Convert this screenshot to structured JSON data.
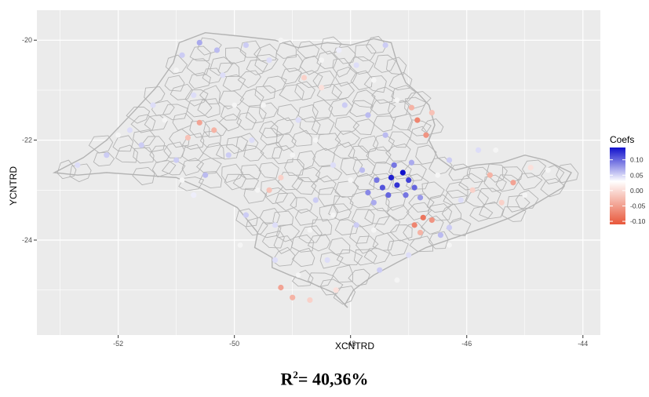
{
  "chart_data": {
    "type": "scatter",
    "title": "",
    "xlabel": "XCNTRD",
    "ylabel": "YCNTRD",
    "xlim": [
      -53.4,
      -43.7
    ],
    "ylim": [
      -25.9,
      -19.4
    ],
    "x_ticks": [
      -52,
      -50,
      -48,
      -46,
      -44
    ],
    "y_ticks": [
      -20,
      -22,
      -24
    ],
    "x_tick_labels": [
      "-52",
      "-50",
      "-48",
      "-46",
      "-44"
    ],
    "y_tick_labels": [
      "-20",
      "-22",
      "-24"
    ],
    "grid": true,
    "panel_background": "#ebebeb",
    "map_fill": "#ebebeb",
    "border_color": "#b3b3b3",
    "legend": {
      "title": "Coefs",
      "position": "right",
      "breaks": [
        0.1,
        0.05,
        0.0,
        -0.05,
        -0.1
      ],
      "labels": [
        "0.10",
        "0.05",
        "0.00",
        "-0.05",
        "-0.10"
      ],
      "limits": [
        -0.11,
        0.14
      ],
      "color_high": "#1010cc",
      "color_mid": "#ffffff",
      "color_low": "#e8573a"
    },
    "points": [
      [
        -47.3,
        -22.75,
        0.13
      ],
      [
        -47.1,
        -22.65,
        0.14
      ],
      [
        -47.2,
        -22.9,
        0.12
      ],
      [
        -47.0,
        -22.8,
        0.11
      ],
      [
        -47.45,
        -22.95,
        0.1
      ],
      [
        -46.9,
        -22.95,
        0.09
      ],
      [
        -47.35,
        -23.1,
        0.09
      ],
      [
        -47.55,
        -22.8,
        0.08
      ],
      [
        -47.05,
        -23.1,
        0.08
      ],
      [
        -47.7,
        -23.05,
        0.07
      ],
      [
        -46.8,
        -23.15,
        0.06
      ],
      [
        -47.25,
        -22.5,
        0.08
      ],
      [
        -47.6,
        -23.25,
        0.05
      ],
      [
        -46.95,
        -22.45,
        0.05
      ],
      [
        -47.8,
        -22.6,
        0.04
      ],
      [
        -46.75,
        -23.55,
        -0.09
      ],
      [
        -46.9,
        -23.7,
        -0.08
      ],
      [
        -46.6,
        -23.6,
        -0.07
      ],
      [
        -46.8,
        -23.85,
        -0.05
      ],
      [
        -46.45,
        -23.9,
        0.04
      ],
      [
        -46.3,
        -23.75,
        0.03
      ],
      [
        -46.85,
        -21.6,
        -0.08
      ],
      [
        -46.7,
        -21.9,
        -0.07
      ],
      [
        -46.95,
        -21.35,
        -0.05
      ],
      [
        -46.6,
        -21.45,
        -0.04
      ],
      [
        -45.6,
        -22.7,
        -0.05
      ],
      [
        -45.2,
        -22.85,
        -0.06
      ],
      [
        -45.9,
        -23.0,
        -0.03
      ],
      [
        -45.4,
        -23.25,
        -0.03
      ],
      [
        -44.9,
        -22.55,
        -0.02
      ],
      [
        -50.6,
        -21.65,
        -0.06
      ],
      [
        -50.35,
        -21.8,
        -0.05
      ],
      [
        -50.8,
        -21.95,
        -0.04
      ],
      [
        -49.4,
        -23.0,
        -0.04
      ],
      [
        -49.2,
        -22.75,
        -0.03
      ],
      [
        -49.2,
        -24.95,
        -0.06
      ],
      [
        -49.0,
        -25.15,
        -0.05
      ],
      [
        -48.7,
        -25.2,
        -0.03
      ],
      [
        -48.25,
        -25.0,
        -0.02
      ],
      [
        -48.8,
        -20.75,
        -0.03
      ],
      [
        -48.5,
        -20.95,
        -0.02
      ],
      [
        -50.6,
        -20.05,
        0.05
      ],
      [
        -50.3,
        -20.2,
        0.04
      ],
      [
        -50.9,
        -20.3,
        0.03
      ],
      [
        -49.8,
        -20.1,
        0.03
      ],
      [
        -50.2,
        -20.7,
        0.02
      ],
      [
        -49.4,
        -20.4,
        0.02
      ],
      [
        -51.6,
        -22.1,
        0.03
      ],
      [
        -52.2,
        -22.3,
        0.03
      ],
      [
        -52.7,
        -22.5,
        0.02
      ],
      [
        -51.0,
        -22.4,
        0.03
      ],
      [
        -50.5,
        -22.7,
        0.04
      ],
      [
        -50.1,
        -22.3,
        0.03
      ],
      [
        -49.7,
        -22.0,
        0.02
      ],
      [
        -49.8,
        -23.5,
        0.03
      ],
      [
        -49.3,
        -23.7,
        0.02
      ],
      [
        -48.6,
        -23.2,
        0.03
      ],
      [
        -48.3,
        -22.5,
        0.02
      ],
      [
        -48.9,
        -21.6,
        0.02
      ],
      [
        -48.1,
        -21.3,
        0.03
      ],
      [
        -47.7,
        -21.5,
        0.04
      ],
      [
        -47.4,
        -21.9,
        0.04
      ],
      [
        -47.9,
        -20.5,
        0.02
      ],
      [
        -47.4,
        -20.1,
        0.03
      ],
      [
        -47.9,
        -23.7,
        0.03
      ],
      [
        -48.4,
        -24.4,
        0.02
      ],
      [
        -47.5,
        -24.6,
        0.03
      ],
      [
        -47.0,
        -24.3,
        0.02
      ],
      [
        -51.4,
        -21.3,
        0.02
      ],
      [
        -51.8,
        -21.8,
        0.02
      ],
      [
        -50.7,
        -21.1,
        0.02
      ],
      [
        -46.3,
        -22.4,
        0.03
      ],
      [
        -45.8,
        -22.2,
        0.02
      ],
      [
        -46.1,
        -23.2,
        0.02
      ],
      [
        -49.3,
        -24.4,
        0.02
      ],
      [
        -48.2,
        -20.2,
        0.01
      ],
      [
        -50.7,
        -23.1,
        0.01
      ]
    ],
    "neutral_points": [
      [
        -51.2,
        -21.6
      ],
      [
        -50.9,
        -22.8
      ],
      [
        -50.0,
        -21.3
      ],
      [
        -49.5,
        -21.3
      ],
      [
        -49.0,
        -22.3
      ],
      [
        -48.6,
        -22.0
      ],
      [
        -48.0,
        -22.8
      ],
      [
        -48.7,
        -23.8
      ],
      [
        -49.9,
        -24.1
      ],
      [
        -47.6,
        -23.8
      ],
      [
        -47.2,
        -24.8
      ],
      [
        -48.5,
        -20.4
      ],
      [
        -49.2,
        -20.0
      ],
      [
        -47.6,
        -20.8
      ],
      [
        -47.2,
        -21.2
      ],
      [
        -46.5,
        -22.7
      ],
      [
        -45.5,
        -22.2
      ],
      [
        -44.6,
        -22.6
      ],
      [
        -45.0,
        -23.1
      ],
      [
        -52.0,
        -21.9
      ],
      [
        -51.0,
        -20.6
      ],
      [
        -49.6,
        -23.0
      ],
      [
        -48.3,
        -23.5
      ],
      [
        -46.3,
        -24.1
      ],
      [
        -48.9,
        -24.7
      ]
    ],
    "annotation": "R²= 40,36%"
  },
  "caption": {
    "prefix": "R",
    "superscript": "2",
    "suffix": "= 40,36%"
  }
}
